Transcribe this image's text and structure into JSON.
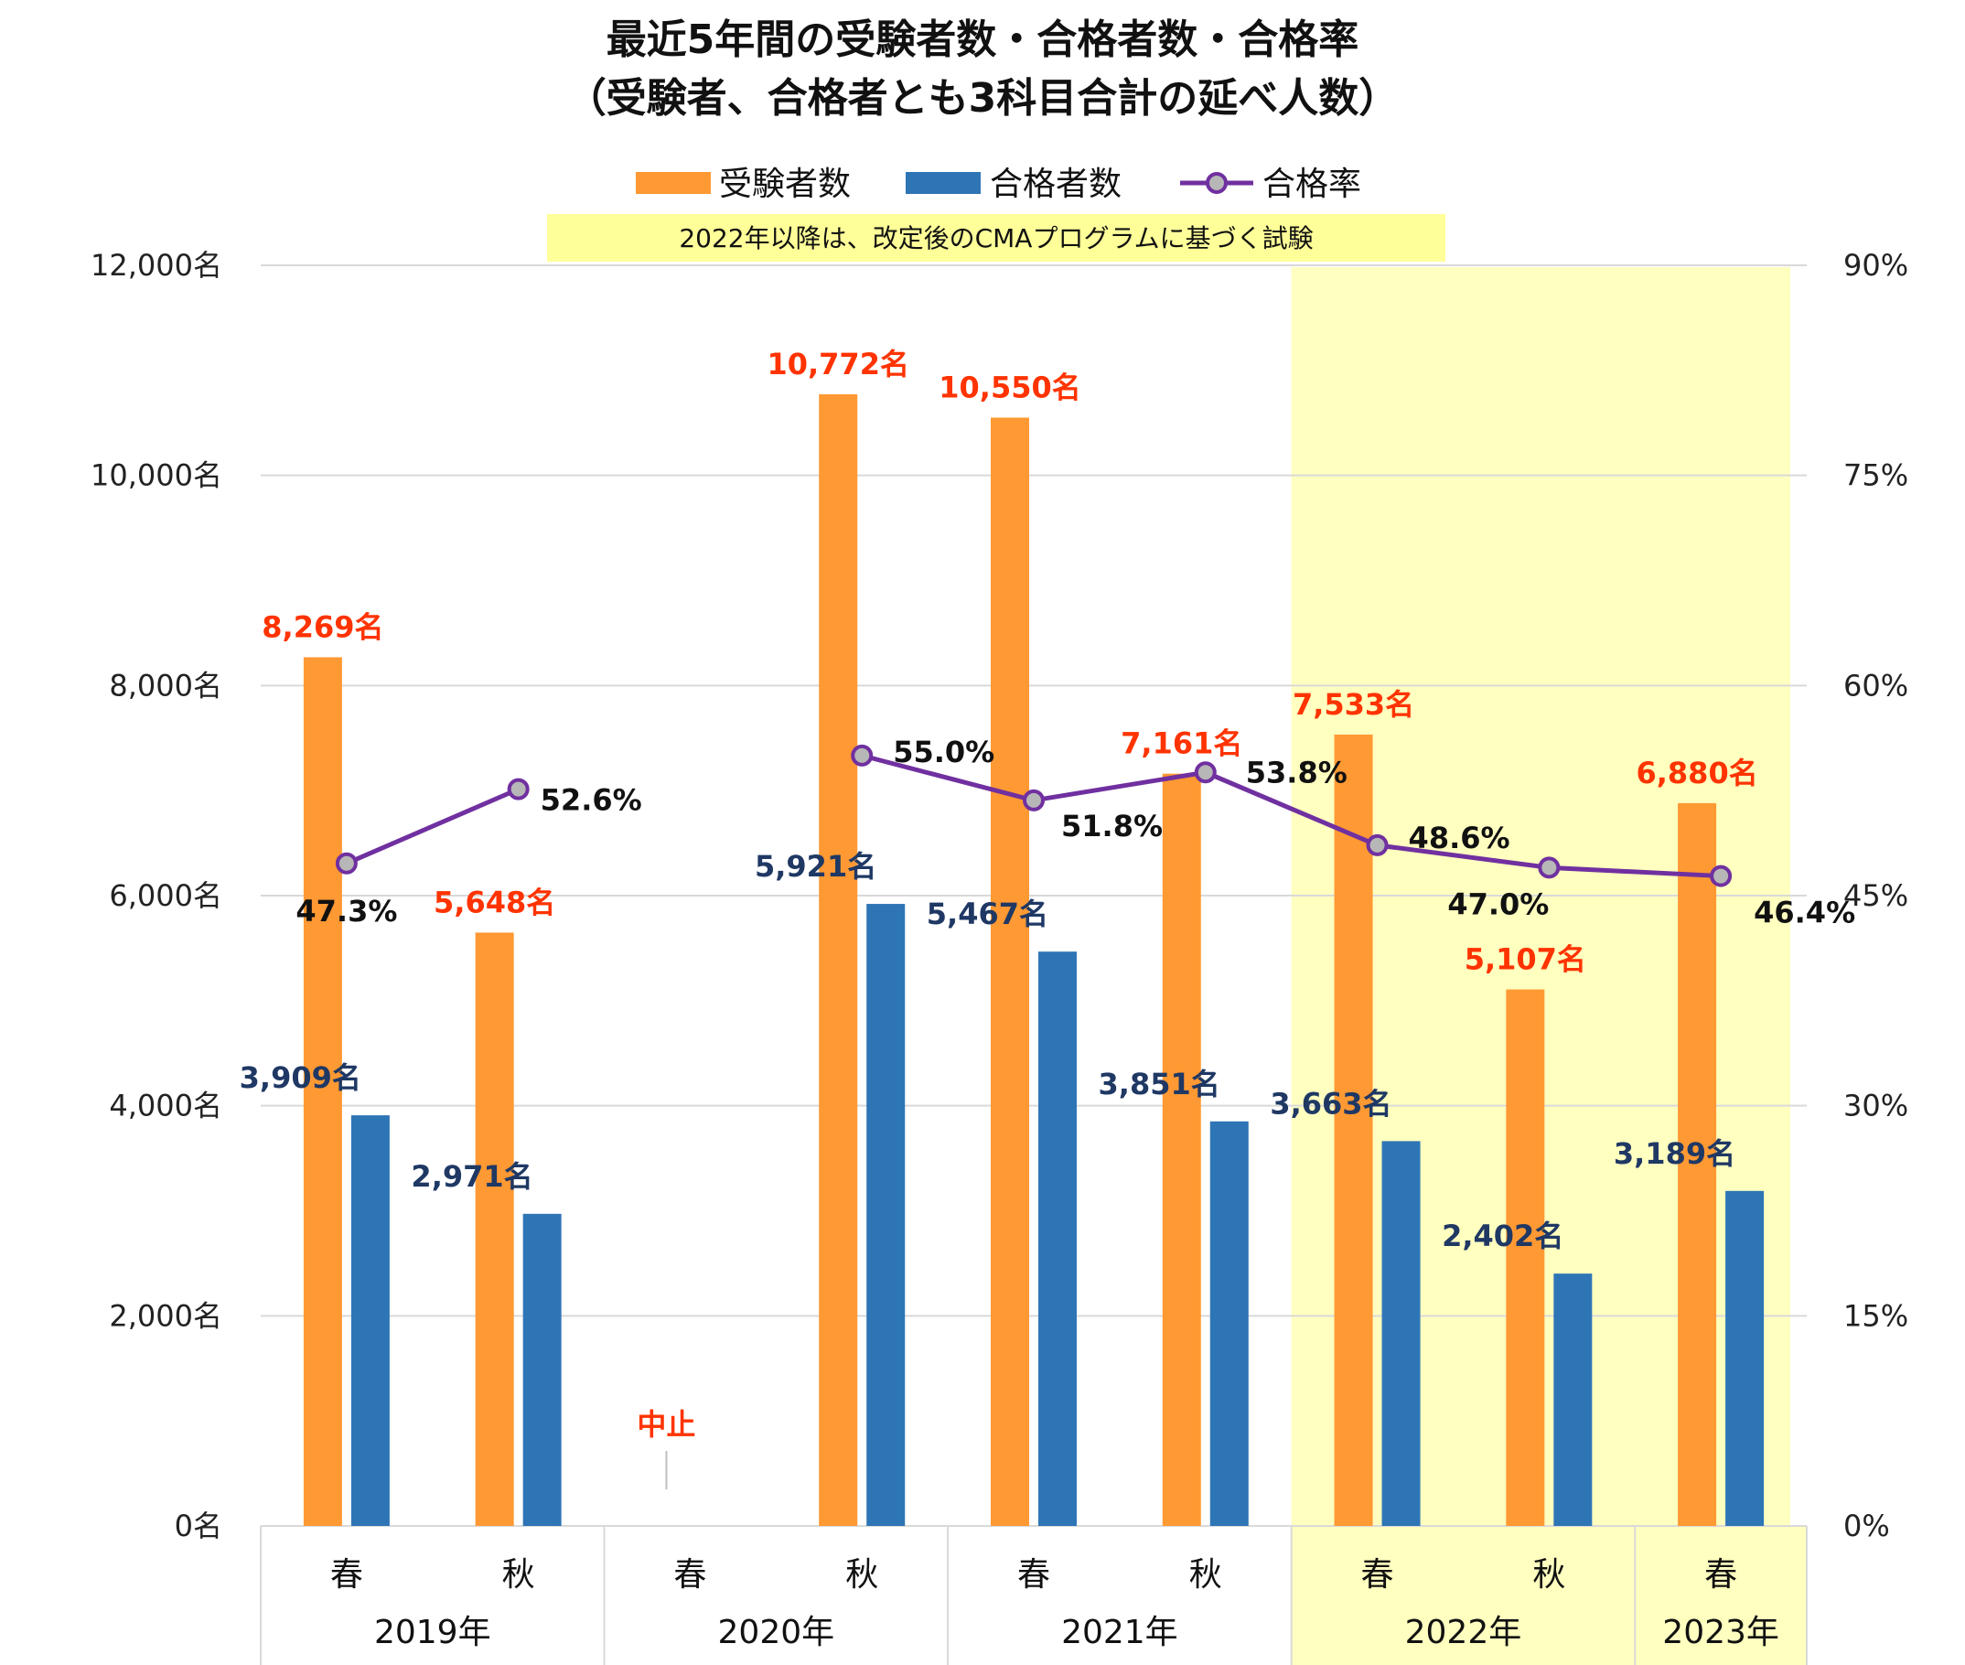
{
  "chart_data": {
    "type": "bar",
    "title": "最近5年間の受験者数・合格者数・合格率",
    "subtitle": "（受験者、合格者とも3科目合計の延べ人数）",
    "note": "2022年以降は、改定後のCMAプログラムに基づく試験",
    "categories": [
      "春",
      "秋",
      "春",
      "秋",
      "春",
      "秋",
      "春",
      "秋",
      "春"
    ],
    "years": [
      {
        "label": "2019年",
        "span": [
          0,
          1
        ]
      },
      {
        "label": "2020年",
        "span": [
          2,
          3
        ]
      },
      {
        "label": "2021年",
        "span": [
          4,
          5
        ]
      },
      {
        "label": "2022年",
        "span": [
          6,
          7
        ]
      },
      {
        "label": "2023年",
        "span": [
          8,
          8
        ]
      }
    ],
    "cancelled": {
      "index": 2,
      "label": "中止"
    },
    "highlight_range": [
      6,
      8
    ],
    "series": [
      {
        "name": "受験者数",
        "type": "bar",
        "axis": "left",
        "color": "#FF9933",
        "values": [
          8269,
          5648,
          null,
          10772,
          10550,
          7161,
          7533,
          5107,
          6880
        ],
        "labels": [
          "8,269名",
          "5,648名",
          "",
          "10,772名",
          "10,550名",
          "7,161名",
          "7,533名",
          "5,107名",
          "6,880名"
        ]
      },
      {
        "name": "合格者数",
        "type": "bar",
        "axis": "left",
        "color": "#2E75B6",
        "values": [
          3909,
          2971,
          null,
          5921,
          5467,
          3851,
          3663,
          2402,
          3189
        ],
        "labels": [
          "3,909名",
          "2,971名",
          "",
          "5,921名",
          "5,467名",
          "3,851名",
          "3,663名",
          "2,402名",
          "3,189名"
        ]
      },
      {
        "name": "合格率",
        "type": "line",
        "axis": "right",
        "color": "#7030A0",
        "values": [
          47.3,
          52.6,
          null,
          55.0,
          51.8,
          53.8,
          48.6,
          47.0,
          46.4
        ],
        "labels": [
          "47.3%",
          "52.6%",
          "",
          "55.0%",
          "51.8%",
          "53.8%",
          "48.6%",
          "47.0%",
          "46.4%"
        ]
      }
    ],
    "y_left": {
      "min": 0,
      "max": 12000,
      "ticks": [
        0,
        2000,
        4000,
        6000,
        8000,
        10000,
        12000
      ],
      "tick_labels": [
        "0名",
        "2,000名",
        "4,000名",
        "6,000名",
        "8,000名",
        "10,000名",
        "12,000名"
      ]
    },
    "y_right": {
      "min": 0,
      "max": 90,
      "ticks": [
        0,
        15,
        30,
        45,
        60,
        75,
        90
      ],
      "tick_labels": [
        "0%",
        "15%",
        "30%",
        "45%",
        "60%",
        "75%",
        "90%"
      ]
    },
    "grid": true,
    "legend_position": "top"
  },
  "colors": {
    "applicants": "#FF9933",
    "passers": "#2E75B6",
    "rate_line": "#7030A0",
    "marker_fill": "#B7B7B7",
    "applicant_label": "#FF3300",
    "passer_label": "#1F3864",
    "highlight": "#FFFFC0"
  }
}
